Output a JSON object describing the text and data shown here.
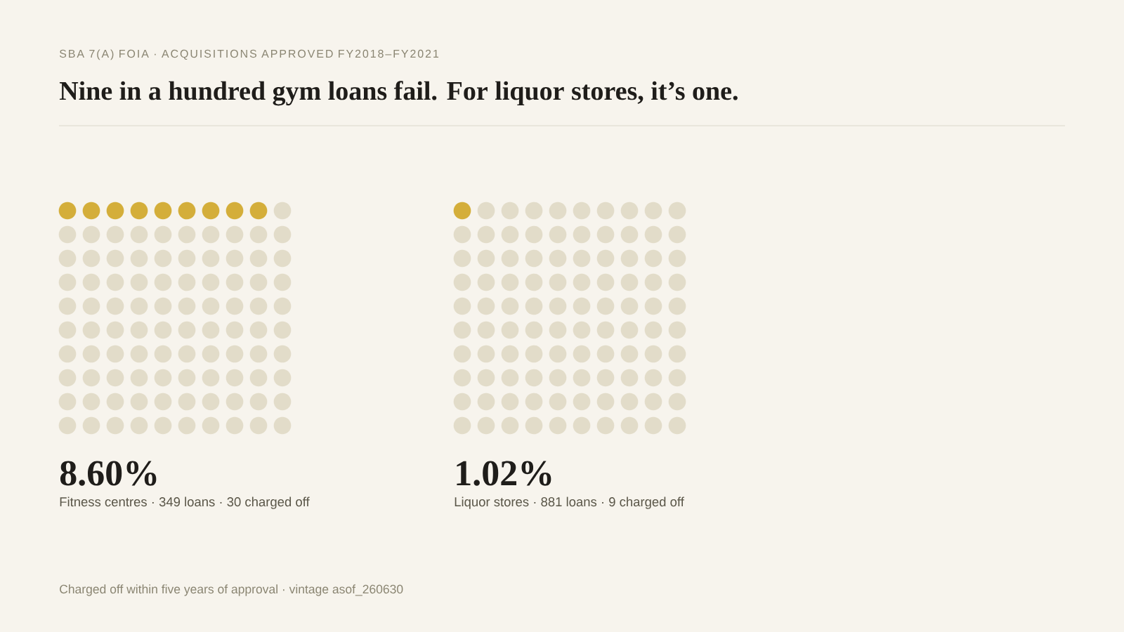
{
  "chart_data": [
    {
      "type": "other",
      "title": "Nine in a hundred gym loans fail. For liquor stores, it’s one.",
      "subtitle": "SBA 7(A) FOIA · ACQUISITIONS APPROVED FY2018–FY2021",
      "values": [
        8.6
      ],
      "value_labels": [
        "8.60%"
      ],
      "xlabel": "Fitness centres · 349 loans · 30 charged off",
      "color": "#d4ae3a",
      "annotations": [
        "Charged off within five years of approval · vintage asof_260630"
      ]
    },
    {
      "type": "other",
      "values": [
        1.02
      ],
      "value_labels": [
        "1.02%"
      ],
      "xlabel": "Liquor stores · 881 loans · 9 charged off",
      "color": "#d4ae3a"
    }
  ]
}
